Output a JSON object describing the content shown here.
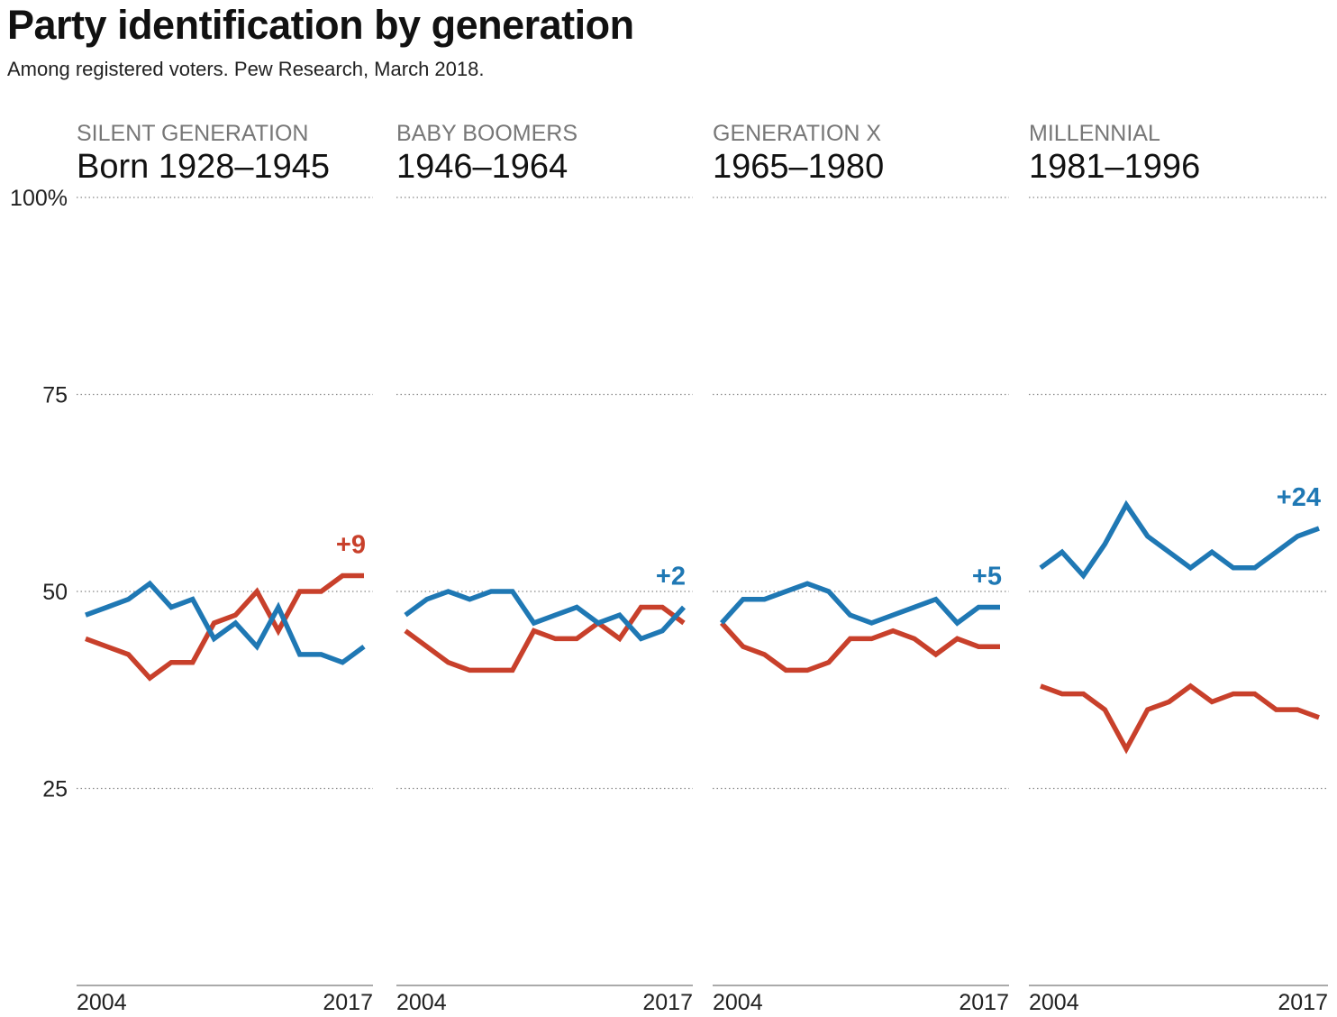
{
  "title": "Party identification by generation",
  "subtitle": "Among registered voters. Pew Research, March 2018.",
  "colors": {
    "democrat": "#1f78b4",
    "republican": "#c8402b",
    "grid": "#888888",
    "axis": "#777777"
  },
  "chart_data": {
    "type": "line",
    "title": "Party identification by generation",
    "subtitle": "Among registered voters. Pew Research, March 2018.",
    "ylim": [
      0,
      100
    ],
    "yticks": [
      {
        "value": 100,
        "label": "100%"
      },
      {
        "value": 75,
        "label": "75"
      },
      {
        "value": 50,
        "label": "50"
      },
      {
        "value": 25,
        "label": "25"
      }
    ],
    "grid": true,
    "x": [
      2004,
      2005,
      2006,
      2007,
      2008,
      2009,
      2010,
      2011,
      2012,
      2013,
      2014,
      2015,
      2016,
      2017
    ],
    "x_tick_labels": [
      "2004",
      "2017"
    ],
    "panels": [
      {
        "name": "SILENT GENERATION",
        "years": "Born 1928–1945",
        "change_label": "+9",
        "change_series": "republican",
        "series": [
          {
            "party": "democrat",
            "values": [
              47,
              48,
              49,
              51,
              48,
              49,
              44,
              46,
              43,
              48,
              42,
              42,
              41,
              43
            ]
          },
          {
            "party": "republican",
            "values": [
              44,
              43,
              42,
              39,
              41,
              41,
              46,
              47,
              50,
              45,
              50,
              50,
              52,
              52
            ]
          }
        ]
      },
      {
        "name": "BABY BOOMERS",
        "years": "1946–1964",
        "change_label": "+2",
        "change_series": "democrat",
        "series": [
          {
            "party": "democrat",
            "values": [
              47,
              49,
              50,
              49,
              50,
              50,
              46,
              47,
              48,
              46,
              47,
              44,
              45,
              48
            ]
          },
          {
            "party": "republican",
            "values": [
              45,
              43,
              41,
              40,
              40,
              40,
              45,
              44,
              44,
              46,
              44,
              48,
              48,
              46
            ]
          }
        ]
      },
      {
        "name": "GENERATION X",
        "years": "1965–1980",
        "change_label": "+5",
        "change_series": "democrat",
        "series": [
          {
            "party": "democrat",
            "values": [
              46,
              49,
              49,
              50,
              51,
              50,
              47,
              46,
              47,
              48,
              49,
              46,
              48,
              48
            ]
          },
          {
            "party": "republican",
            "values": [
              46,
              43,
              42,
              40,
              40,
              41,
              44,
              44,
              45,
              44,
              42,
              44,
              43,
              43
            ]
          }
        ]
      },
      {
        "name": "MILLENNIAL",
        "years": "1981–1996",
        "change_label": "+24",
        "change_series": "democrat",
        "series": [
          {
            "party": "democrat",
            "values": [
              53,
              55,
              52,
              56,
              61,
              57,
              55,
              53,
              55,
              53,
              53,
              55,
              57,
              58
            ]
          },
          {
            "party": "republican",
            "values": [
              38,
              37,
              37,
              35,
              30,
              35,
              36,
              38,
              36,
              37,
              37,
              35,
              35,
              34
            ]
          }
        ]
      }
    ]
  }
}
